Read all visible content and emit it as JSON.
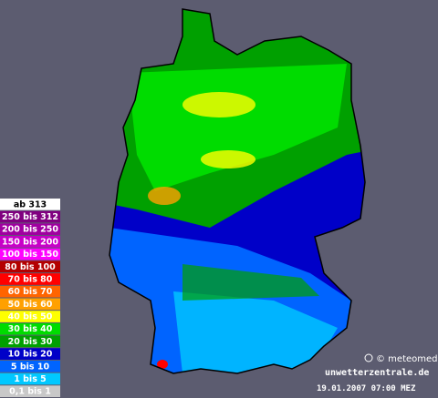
{
  "legend": {
    "items": [
      {
        "label": "ab 313",
        "color": "#ffffff",
        "text_color": "#000000"
      },
      {
        "label": "250 bis 312",
        "color": "#800080",
        "text_color": "#ffffff"
      },
      {
        "label": "200 bis 250",
        "color": "#a000a0",
        "text_color": "#ffffff"
      },
      {
        "label": "150 bis 200",
        "color": "#c800c8",
        "text_color": "#ffffff"
      },
      {
        "label": "100 bis 150",
        "color": "#ff00ff",
        "text_color": "#ffffff"
      },
      {
        "label": "80 bis 100",
        "color": "#b40000",
        "text_color": "#ffffff"
      },
      {
        "label": "70 bis 80",
        "color": "#ff0000",
        "text_color": "#ffffff"
      },
      {
        "label": "60 bis 70",
        "color": "#ff6400",
        "text_color": "#ffffff"
      },
      {
        "label": "50 bis 60",
        "color": "#ffa000",
        "text_color": "#ffffff"
      },
      {
        "label": "40 bis 50",
        "color": "#ffff00",
        "text_color": "#ffffff"
      },
      {
        "label": "30 bis 40",
        "color": "#00dc00",
        "text_color": "#ffffff"
      },
      {
        "label": "20 bis 30",
        "color": "#00a000",
        "text_color": "#ffffff"
      },
      {
        "label": "10 bis 20",
        "color": "#0000c8",
        "text_color": "#ffffff"
      },
      {
        "label": "5 bis 10",
        "color": "#0064ff",
        "text_color": "#ffffff"
      },
      {
        "label": "1 bis 5",
        "color": "#00c8ff",
        "text_color": "#ffffff"
      },
      {
        "label": "0,1 bis 1",
        "color": "#c8c8c8",
        "text_color": "#ffffff"
      }
    ]
  },
  "credits": {
    "copyright": "© meteomedia",
    "site": "unwetterzentrale.de",
    "timestamp": "19.01.2007 07:00 MEZ"
  }
}
